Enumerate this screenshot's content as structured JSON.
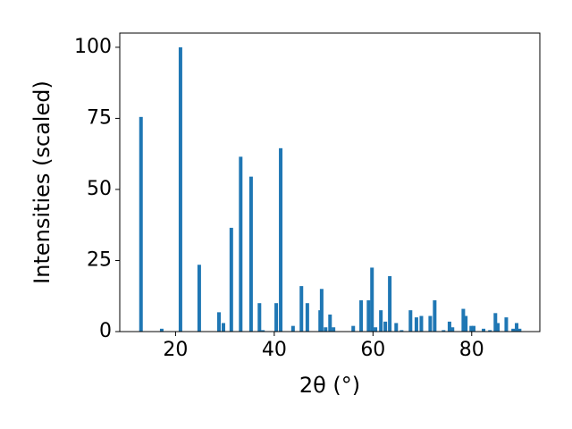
{
  "chart_data": {
    "type": "bar",
    "x_label": "2θ (°)",
    "y_label": "Intensities (scaled)",
    "x": [
      13.0,
      17.2,
      21.0,
      24.8,
      28.8,
      29.7,
      31.3,
      33.2,
      35.3,
      37.0,
      37.7,
      40.4,
      41.3,
      43.8,
      45.5,
      46.7,
      49.3,
      49.6,
      50.4,
      51.3,
      52.0,
      56.0,
      57.6,
      59.1,
      59.8,
      60.5,
      61.6,
      62.5,
      63.4,
      64.7,
      65.8,
      67.6,
      68.8,
      69.8,
      71.6,
      72.5,
      74.3,
      75.5,
      76.1,
      78.3,
      78.8,
      79.9,
      80.4,
      82.4,
      83.7,
      84.8,
      85.3,
      87.0,
      88.4,
      89.1,
      89.7
    ],
    "values": [
      75.5,
      1,
      100,
      23.5,
      6.8,
      3,
      36.5,
      61.5,
      54.5,
      10,
      0.5,
      10,
      64.5,
      2,
      16,
      10,
      7.5,
      15,
      1.5,
      6,
      1.5,
      2,
      11,
      11,
      22.5,
      1.5,
      7.5,
      3.5,
      19.5,
      3,
      0.5,
      7.5,
      5,
      5.5,
      5.5,
      11,
      0.5,
      3.5,
      1.5,
      8,
      5.5,
      2,
      2,
      1,
      0.5,
      6.5,
      3,
      5,
      1,
      3,
      1
    ],
    "color": "#1f77b4",
    "xlim": [
      8.7,
      93.8
    ],
    "xticks": [
      20,
      40,
      60,
      80
    ],
    "ylim": [
      0,
      105
    ],
    "yticks": [
      0,
      25,
      50,
      75,
      100
    ]
  }
}
